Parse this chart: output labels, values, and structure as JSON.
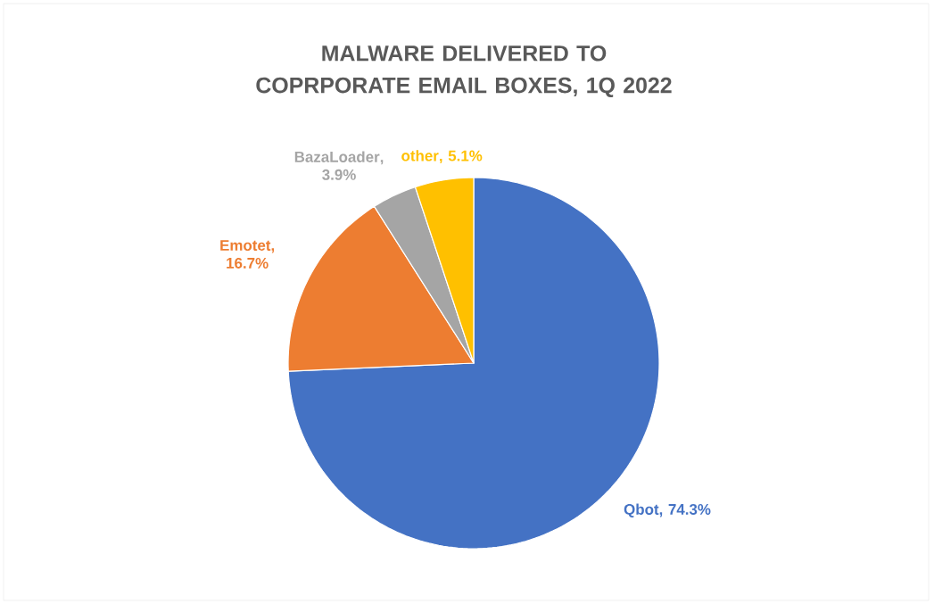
{
  "chart_data": {
    "type": "pie",
    "title": "MALWARE DELIVERED TO COPRPORATE EMAIL BOXES, 1Q 2022",
    "categories": [
      "Qbot",
      "Emotet",
      "BazaLoader",
      "other"
    ],
    "values": [
      74.3,
      16.7,
      3.9,
      5.1
    ],
    "value_labels": [
      ", 74.3%",
      ", 16.7%",
      ", 3.9%",
      ", 5.1%"
    ],
    "colors": [
      "#4472c4",
      "#ed7d31",
      "#a5a5a5",
      "#ffc000"
    ],
    "legend": false
  }
}
